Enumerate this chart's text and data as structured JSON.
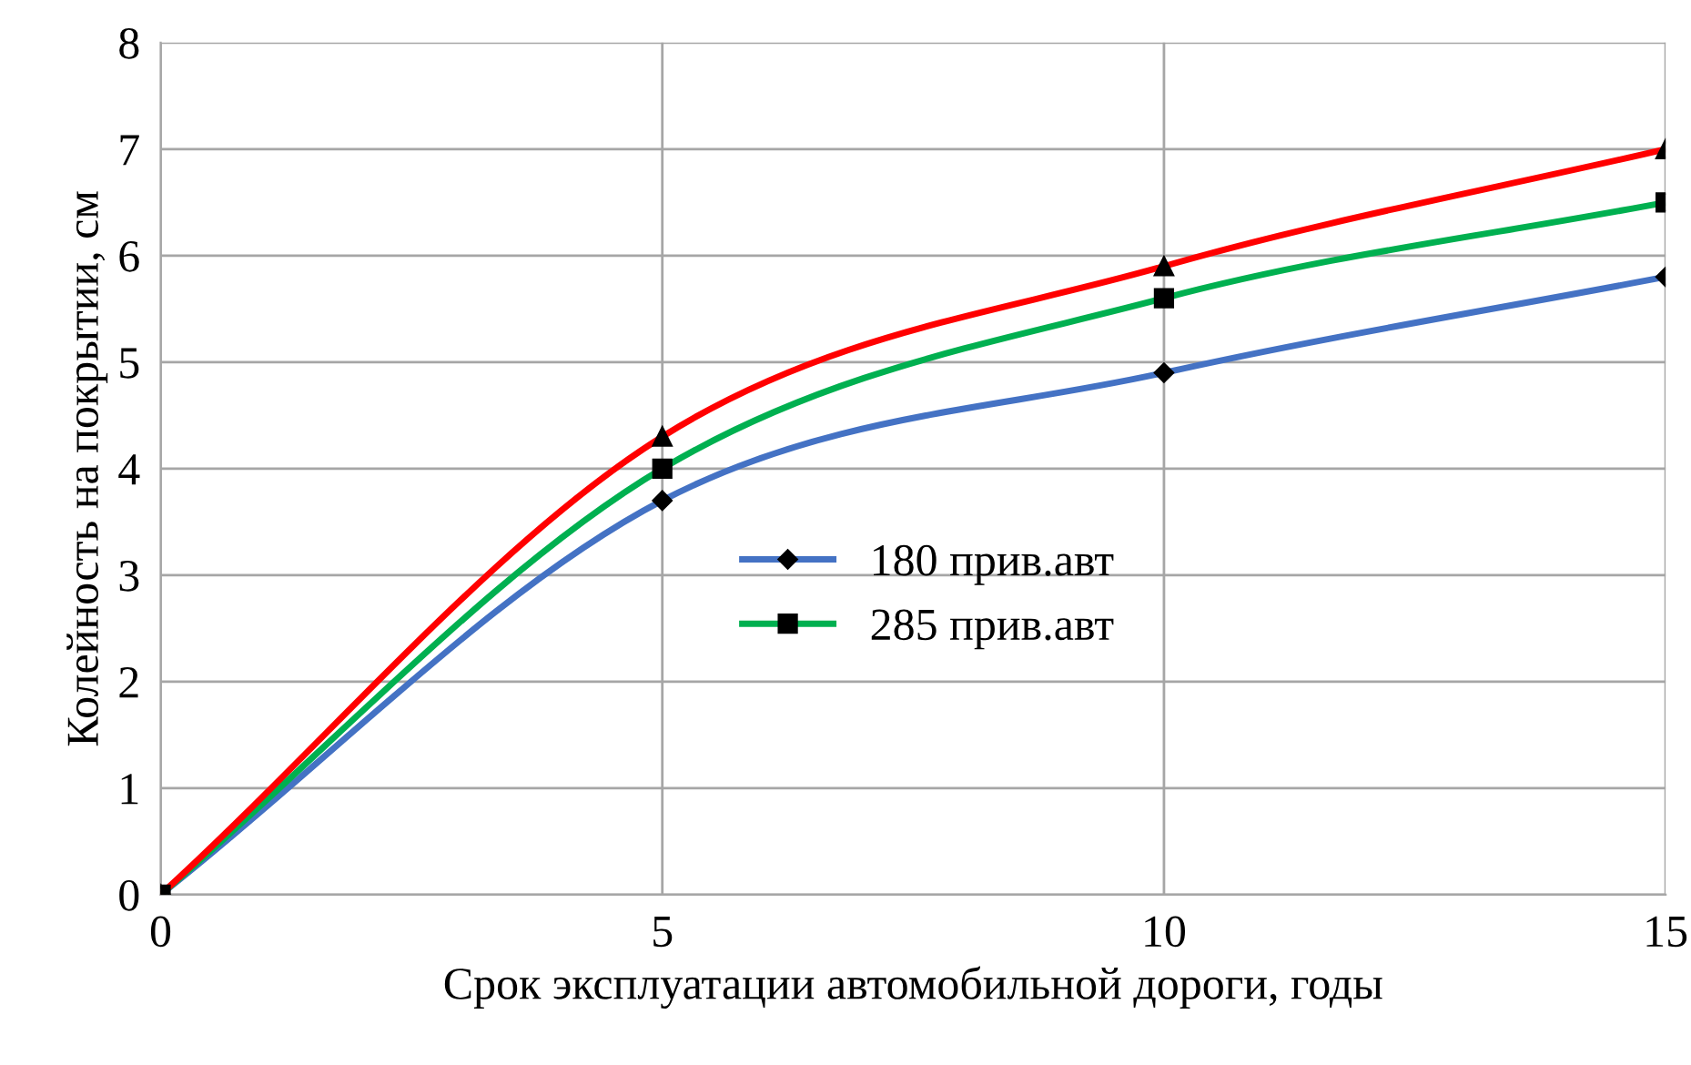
{
  "chart_data": {
    "type": "line",
    "xlabel": "Срок эксплуатации автомобильной дороги, годы",
    "ylabel": "Колейность на покрытии, см",
    "x": [
      0,
      5,
      10,
      15
    ],
    "series": [
      {
        "name": "180 прив.авт",
        "color": "#4472c4",
        "marker": "diamond",
        "values": [
          0,
          3.7,
          4.9,
          5.8
        ]
      },
      {
        "name": "285 прив.авт",
        "color": "#00b050",
        "marker": "square",
        "values": [
          0,
          4.0,
          5.6,
          6.5
        ]
      },
      {
        "color": "#ff0000",
        "marker": "triangle",
        "values": [
          0,
          4.3,
          5.9,
          7.0
        ]
      }
    ],
    "xlim": [
      0,
      15
    ],
    "xticks": [
      0,
      5,
      10,
      15
    ],
    "ylim": [
      0,
      8
    ],
    "yticks": [
      0,
      1,
      2,
      3,
      4,
      5,
      6,
      7,
      8
    ],
    "grid": true,
    "legend": "center",
    "line_style": "solid"
  }
}
